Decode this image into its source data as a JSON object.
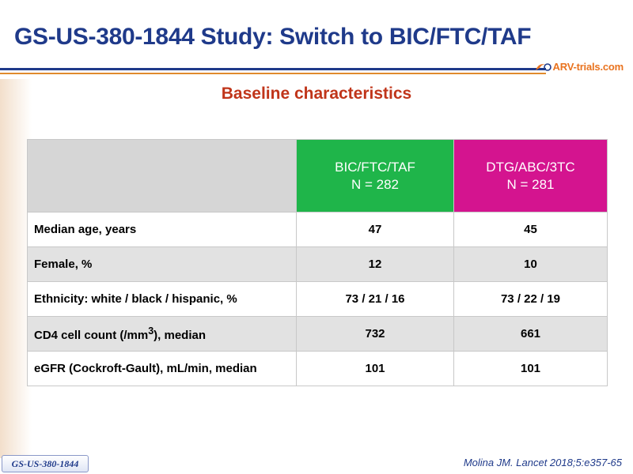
{
  "slide": {
    "title": "GS-US-380-1844 Study: Switch to BIC/FTC/TAF",
    "subtitle": "Baseline characteristics",
    "logo_text": "ARV-trials.com",
    "badge": "GS-US-380-1844",
    "citation": "Molina JM. Lancet 2018;5:e357-65"
  },
  "colors": {
    "title": "#1f3a8a",
    "subtitle": "#c0351a",
    "bic_header": "#1fb54a",
    "dtg_header": "#d4148f"
  },
  "table": {
    "columns": [
      {
        "name": "BIC/FTC/TAF",
        "n": "N = 282"
      },
      {
        "name": "DTG/ABC/3TC",
        "n": "N = 281"
      }
    ],
    "rows": [
      {
        "label": "Median age, years",
        "a": "47",
        "b": "45"
      },
      {
        "label": "Female, %",
        "a": "12",
        "b": "10"
      },
      {
        "label": "Ethnicity: white / black / hispanic, %",
        "a": "73 / 21 / 16",
        "b": "73 / 22 / 19"
      },
      {
        "label_pre": "CD4 cell count (/mm",
        "label_sup": "3",
        "label_post": "), median",
        "a": "732",
        "b": "661"
      },
      {
        "label": "eGFR (Cockroft-Gault), mL/min, median",
        "a": "101",
        "b": "101"
      }
    ]
  }
}
